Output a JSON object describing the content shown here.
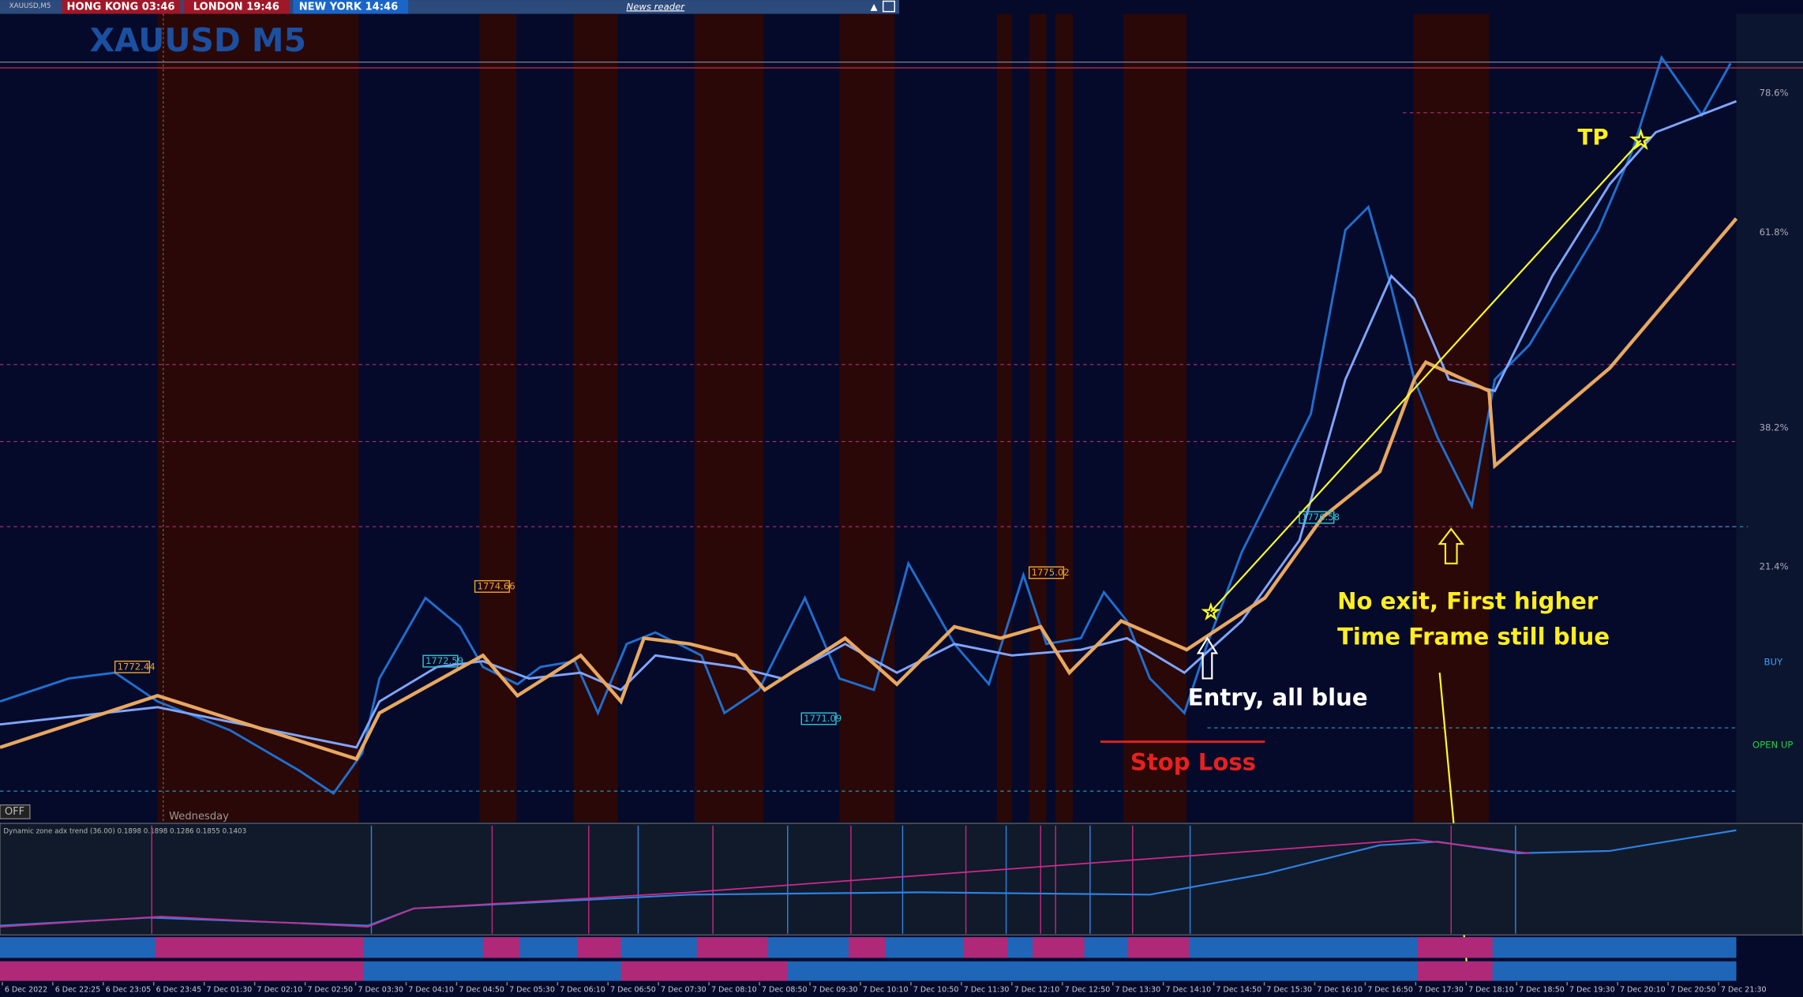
{
  "header": {
    "symbol": "XAUUSD,M5",
    "clocks": [
      "HONG KONG 03:46",
      "LONDON 19:46",
      "NEW YORK 14:46"
    ],
    "news": "News reader"
  },
  "title": "XAUUSD M5",
  "levels": [
    "78.6%",
    "61.8%",
    "38.2%",
    "21.4%",
    "BUY",
    "OPEN UP"
  ],
  "price_labels": [
    "1772.44",
    "1774.66",
    "1772.59",
    "1771.09",
    "1775.02",
    "1776.58"
  ],
  "annotations": {
    "tp": "TP",
    "entry": "Entry, all blue",
    "stop_loss": "Stop Loss",
    "no_exit": [
      "No exit, First higher",
      "Time Frame still blue"
    ]
  },
  "off": "OFF",
  "day": "Wednesday",
  "indicator": "Dynamic zone adx trend (36.00) 0.1898 0.1898 0.1286 0.1855 0.1403",
  "x_labels": [
    "6 Dec 2022",
    "6 Dec 22:25",
    "6 Dec 23:05",
    "6 Dec 23:45",
    "7 Dec 01:30",
    "7 Dec 02:10",
    "7 Dec 02:50",
    "7 Dec 03:30",
    "7 Dec 04:10",
    "7 Dec 04:50",
    "7 Dec 05:30",
    "7 Dec 06:10",
    "7 Dec 06:50",
    "7 Dec 07:30",
    "7 Dec 08:10",
    "7 Dec 08:50",
    "7 Dec 09:30",
    "7 Dec 10:10",
    "7 Dec 10:50",
    "7 Dec 11:30",
    "7 Dec 12:10",
    "7 Dec 12:50",
    "7 Dec 13:30",
    "7 Dec 14:10",
    "7 Dec 14:50",
    "7 Dec 15:30",
    "7 Dec 16:10",
    "7 Dec 16:50",
    "7 Dec 17:30",
    "7 Dec 18:10",
    "7 Dec 18:50",
    "7 Dec 19:30",
    "7 Dec 20:10",
    "7 Dec 20:50",
    "7 Dec 21:30"
  ]
}
